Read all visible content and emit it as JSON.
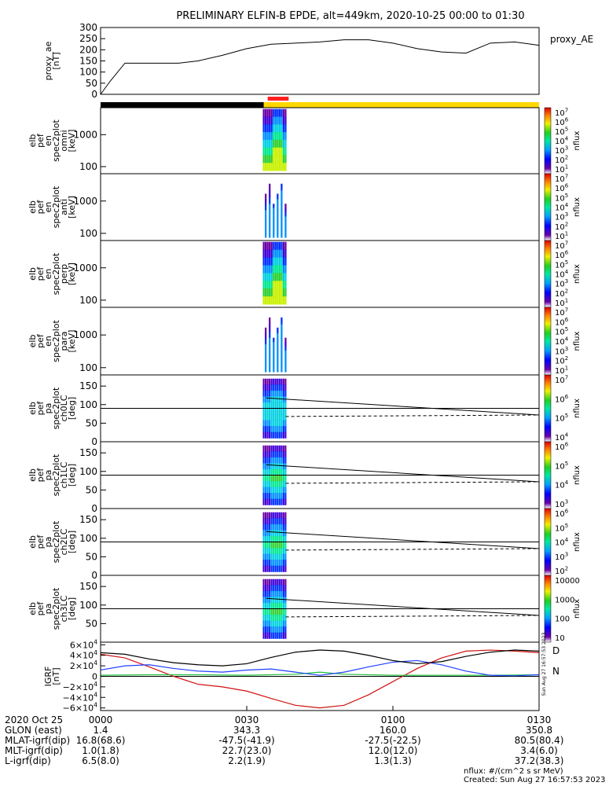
{
  "title": "PRELIMINARY ELFIN-B EPDE, alt=449km, 2020-10-25 00:00 to 01:30",
  "colors": {
    "ae_line": "#000000",
    "bar_night": "#000000",
    "bar_day": "#ffd800",
    "bar_science": "#ff2020",
    "igrf_d": "#d01010",
    "igrf_n": "#20c040",
    "igrf_e": "#2040ff",
    "igrf_total": "#000000"
  },
  "panels": [
    {
      "id": "ae",
      "label": [
        "proxy_ae",
        "[nT]"
      ],
      "right_label": "proxy_AE"
    },
    {
      "id": "en_omni",
      "label": [
        "elb",
        "pef",
        "en",
        "spec2plot",
        "omni",
        "[keV]"
      ],
      "cb_label": "nflux",
      "cb_ticks": [
        "10",
        "10",
        "10",
        "10",
        "10",
        "10",
        "10"
      ],
      "cb_exps": [
        "1",
        "2",
        "3",
        "4",
        "5",
        "6",
        "7"
      ]
    },
    {
      "id": "en_anti",
      "label": [
        "elb",
        "pef",
        "en",
        "spec2plot",
        "anti",
        "[keV]"
      ],
      "cb_label": "nflux",
      "cb_ticks": [
        "10",
        "10",
        "10",
        "10",
        "10",
        "10",
        "10"
      ],
      "cb_exps": [
        "1",
        "2",
        "3",
        "4",
        "5",
        "6",
        "7"
      ]
    },
    {
      "id": "en_perp",
      "label": [
        "elb",
        "pef",
        "en",
        "spec2plot",
        "perp",
        "[keV]"
      ],
      "cb_label": "nflux",
      "cb_ticks": [
        "10",
        "10",
        "10",
        "10",
        "10",
        "10",
        "10"
      ],
      "cb_exps": [
        "1",
        "2",
        "3",
        "4",
        "5",
        "6",
        "7"
      ]
    },
    {
      "id": "en_para",
      "label": [
        "elb",
        "pef",
        "en",
        "spec2plot",
        "para",
        "[keV]"
      ],
      "cb_label": "nflux",
      "cb_ticks": [
        "10",
        "10",
        "10",
        "10",
        "10",
        "10",
        "10"
      ],
      "cb_exps": [
        "1",
        "2",
        "3",
        "4",
        "5",
        "6",
        "7"
      ]
    },
    {
      "id": "pa_ch0",
      "label": [
        "elb",
        "pef",
        "pa",
        "spec2plot",
        "ch0LC",
        "[deg]"
      ],
      "cb_label": "nflux",
      "cb_ticks": [
        "10",
        "10",
        "10",
        "10"
      ],
      "cb_exps": [
        "4",
        "5",
        "6",
        "7"
      ]
    },
    {
      "id": "pa_ch1",
      "label": [
        "elb",
        "pef",
        "pa",
        "spec2plot",
        "ch1LC",
        "[deg]"
      ],
      "cb_label": "nflux",
      "cb_ticks": [
        "10",
        "10",
        "10",
        "10"
      ],
      "cb_exps": [
        "3",
        "4",
        "5",
        "6"
      ]
    },
    {
      "id": "pa_ch2",
      "label": [
        "elb",
        "pef",
        "pa",
        "spec2plot",
        "ch2LC",
        "[deg]"
      ],
      "cb_label": "nflux",
      "cb_ticks": [
        "10",
        "10",
        "10",
        "10",
        "10"
      ],
      "cb_exps": [
        "2",
        "3",
        "4",
        "5",
        "6"
      ]
    },
    {
      "id": "pa_ch3",
      "label": [
        "elb",
        "pef",
        "pa",
        "spec2plot",
        "ch3LC",
        "[deg]"
      ],
      "cb_label": "nflux",
      "cb_ticks": [
        "10",
        "100",
        "1000",
        "10000"
      ],
      "cb_exps": [
        "",
        "",
        "",
        ""
      ]
    },
    {
      "id": "igrf",
      "label": [
        "IGRF",
        "[nT]"
      ],
      "right_labels": [
        "D",
        "N"
      ],
      "stamp": "Sun Aug 27 16:57:53 2023"
    }
  ],
  "chart_data": [
    {
      "type": "line",
      "name": "proxy_ae",
      "ylim": [
        0,
        300
      ],
      "yticks": [
        "0",
        "50",
        "100",
        "150",
        "200",
        "250",
        "300"
      ],
      "x_min": [
        0,
        2,
        5,
        8,
        12,
        16,
        20,
        25,
        30,
        35,
        40,
        45,
        50,
        55,
        60,
        65,
        70,
        75,
        80,
        85,
        90
      ],
      "values": [
        0,
        60,
        140,
        140,
        140,
        140,
        150,
        175,
        205,
        225,
        230,
        235,
        245,
        245,
        230,
        205,
        190,
        185,
        230,
        235,
        220
      ]
    },
    {
      "type": "heatmap",
      "name": "en_omni",
      "yscale": "log",
      "ylim": [
        60,
        7000
      ],
      "yticks": [
        "100",
        "1000"
      ],
      "t_start_min": 33.3,
      "t_end_min": 38.2
    },
    {
      "type": "heatmap",
      "name": "en_anti",
      "yscale": "log",
      "ylim": [
        60,
        7000
      ],
      "yticks": [
        "100",
        "1000"
      ],
      "t_start_min": 33.3,
      "t_end_min": 38.2
    },
    {
      "type": "heatmap",
      "name": "en_perp",
      "yscale": "log",
      "ylim": [
        60,
        7000
      ],
      "yticks": [
        "100",
        "1000"
      ],
      "t_start_min": 33.3,
      "t_end_min": 38.2
    },
    {
      "type": "heatmap",
      "name": "en_para",
      "yscale": "log",
      "ylim": [
        60,
        7000
      ],
      "yticks": [
        "100",
        "1000"
      ],
      "t_start_min": 33.3,
      "t_end_min": 38.2
    },
    {
      "type": "heatmap",
      "name": "pa_ch0",
      "ylim": [
        0,
        180
      ],
      "yticks": [
        "0",
        "50",
        "100",
        "150"
      ],
      "t_start_min": 33.3,
      "t_end_min": 38.2,
      "hline": 90,
      "lc_solid": {
        "x_min": [
          34,
          90
        ],
        "values": [
          118,
          72
        ]
      },
      "lc_dashed": {
        "x_min": [
          38,
          90
        ],
        "values": [
          68,
          72
        ]
      }
    },
    {
      "type": "heatmap",
      "name": "pa_ch1",
      "ylim": [
        0,
        180
      ],
      "yticks": [
        "0",
        "50",
        "100",
        "150"
      ],
      "t_start_min": 33.3,
      "t_end_min": 38.2,
      "hline": 90,
      "lc_solid": {
        "x_min": [
          34,
          90
        ],
        "values": [
          118,
          72
        ]
      },
      "lc_dashed": {
        "x_min": [
          38,
          90
        ],
        "values": [
          68,
          72
        ]
      }
    },
    {
      "type": "heatmap",
      "name": "pa_ch2",
      "ylim": [
        0,
        180
      ],
      "yticks": [
        "0",
        "50",
        "100",
        "150"
      ],
      "t_start_min": 33.3,
      "t_end_min": 38.2,
      "hline": 90,
      "lc_solid": {
        "x_min": [
          34,
          90
        ],
        "values": [
          118,
          72
        ]
      },
      "lc_dashed": {
        "x_min": [
          38,
          90
        ],
        "values": [
          68,
          72
        ]
      }
    },
    {
      "type": "heatmap",
      "name": "pa_ch3",
      "ylim": [
        0,
        180
      ],
      "yticks": [
        "50",
        "100",
        "150"
      ],
      "t_start_min": 33.3,
      "t_end_min": 38.2,
      "hline": 90,
      "lc_solid": {
        "x_min": [
          34,
          90
        ],
        "values": [
          118,
          72
        ]
      },
      "lc_dashed": {
        "x_min": [
          38,
          90
        ],
        "values": [
          68,
          72
        ]
      }
    },
    {
      "type": "line",
      "name": "igrf",
      "ylim": [
        -65000,
        65000
      ],
      "yticks": [
        {
          "v": 60000,
          "m": "6",
          "e": "4"
        },
        {
          "v": 40000,
          "m": "4",
          "e": "4"
        },
        {
          "v": 20000,
          "m": "2",
          "e": "4"
        },
        {
          "v": 0,
          "m": "0",
          "e": ""
        },
        {
          "v": -20000,
          "m": "−2",
          "e": "4"
        },
        {
          "v": -40000,
          "m": "−4",
          "e": "4"
        },
        {
          "v": -60000,
          "m": "−6",
          "e": "4"
        }
      ],
      "series": [
        {
          "name": "D",
          "color": "#d01010",
          "x_min": [
            0,
            5,
            10,
            15,
            20,
            25,
            30,
            35,
            40,
            45,
            50,
            55,
            60,
            65,
            70,
            75,
            80,
            85,
            90
          ],
          "values": [
            42000,
            35000,
            18000,
            0,
            -15000,
            -20000,
            -28000,
            -42000,
            -55000,
            -60000,
            -55000,
            -35000,
            -10000,
            15000,
            35000,
            48000,
            50000,
            48000,
            45000
          ]
        },
        {
          "name": "N",
          "color": "#20c040",
          "x_min": [
            0,
            10,
            20,
            30,
            40,
            45,
            50,
            60,
            70,
            80,
            90
          ],
          "values": [
            2000,
            3000,
            3000,
            2000,
            4000,
            8000,
            4000,
            2000,
            2000,
            2000,
            3000
          ]
        },
        {
          "name": "E",
          "color": "#2040ff",
          "x_min": [
            0,
            5,
            10,
            15,
            20,
            25,
            30,
            35,
            40,
            45,
            50,
            55,
            60,
            65,
            70,
            75,
            80,
            85,
            90
          ],
          "values": [
            12000,
            20000,
            22000,
            15000,
            10000,
            8000,
            12000,
            14000,
            8000,
            2000,
            8000,
            18000,
            27000,
            30000,
            22000,
            10000,
            2000,
            1000,
            3000
          ]
        },
        {
          "name": "total",
          "color": "#000000",
          "x_min": [
            0,
            5,
            10,
            15,
            20,
            25,
            30,
            35,
            40,
            45,
            50,
            55,
            60,
            65,
            70,
            75,
            80,
            85,
            90
          ],
          "values": [
            45000,
            42000,
            33000,
            26000,
            22000,
            20000,
            24000,
            36000,
            46000,
            50000,
            48000,
            40000,
            30000,
            24000,
            28000,
            38000,
            46000,
            50000,
            48000
          ]
        }
      ]
    }
  ],
  "footer": {
    "row_labels": [
      "2020 Oct 25",
      "GLON (east)",
      "MLAT-igrf(dip)",
      "MLT-igrf(dip)",
      "L-igrf(dip)"
    ],
    "columns": [
      {
        "time": "0000",
        "vals": [
          "1.4",
          "16.8(68.6)",
          "1.0(1.8)",
          "6.5(8.0)"
        ]
      },
      {
        "time": "0030",
        "vals": [
          "343.3",
          "-47.5(-41.9)",
          "22.7(23.0)",
          "2.2(1.9)"
        ]
      },
      {
        "time": "0100",
        "vals": [
          "160.0",
          "-27.5(-22.5)",
          "12.0(12.0)",
          "1.3(1.3)"
        ]
      },
      {
        "time": "0130",
        "vals": [
          "350.8",
          "80.5(80.4)",
          "3.4(6.0)",
          "37.2(38.3)"
        ]
      }
    ],
    "units": "nflux: #/(cm^2 s sr MeV)",
    "created": "Created: Sun Aug 27 16:57:53 2023"
  }
}
